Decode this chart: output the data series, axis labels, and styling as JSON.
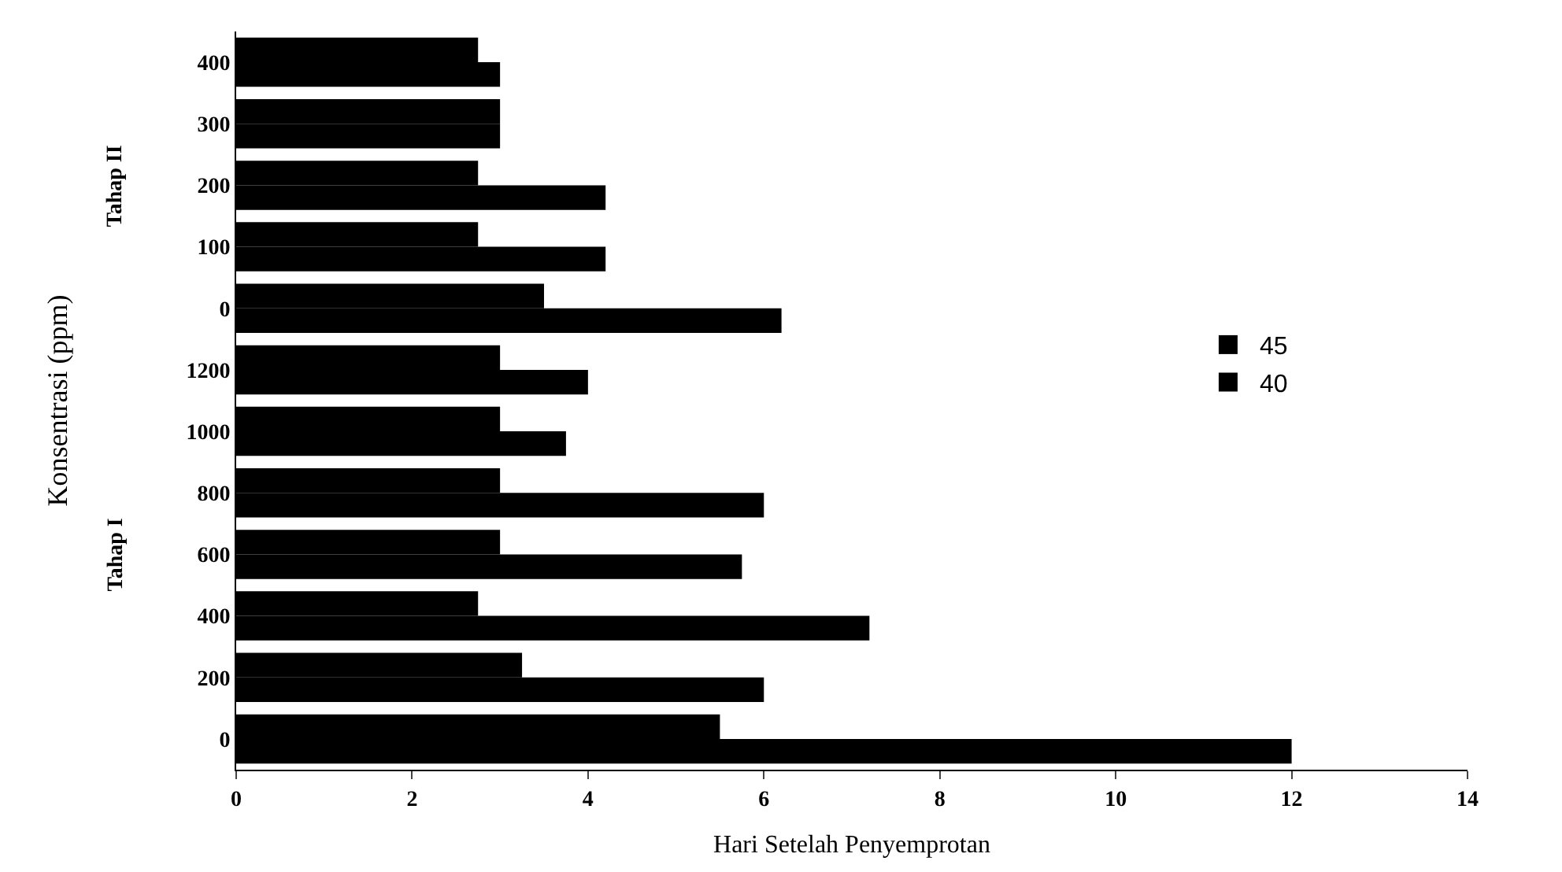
{
  "chart_data": {
    "type": "bar",
    "orientation": "horizontal",
    "xlabel": "Hari Setelah Penyemprotan",
    "ylabel": "Konsentrasi (ppm)",
    "categories": [
      "400",
      "300",
      "200",
      "100",
      "0",
      "1200",
      "1000",
      "800",
      "600",
      "400",
      "200",
      "0"
    ],
    "series": [
      {
        "name": "45",
        "color": "#000000",
        "values": [
          2.75,
          3.0,
          2.75,
          2.75,
          3.5,
          3.0,
          3.0,
          3.0,
          3.0,
          2.75,
          3.25,
          5.5
        ]
      },
      {
        "name": "40",
        "color": "#000000",
        "values": [
          3.0,
          3.0,
          4.2,
          4.2,
          6.2,
          4.0,
          3.75,
          6.0,
          5.75,
          7.2,
          6.0,
          12.0
        ]
      }
    ],
    "annotations": [
      "Tahap II",
      "Tahap I"
    ],
    "xlim": [
      0,
      14
    ],
    "xticks": [
      0,
      2,
      4,
      6,
      8,
      10,
      12,
      14
    ],
    "legend": "right"
  }
}
